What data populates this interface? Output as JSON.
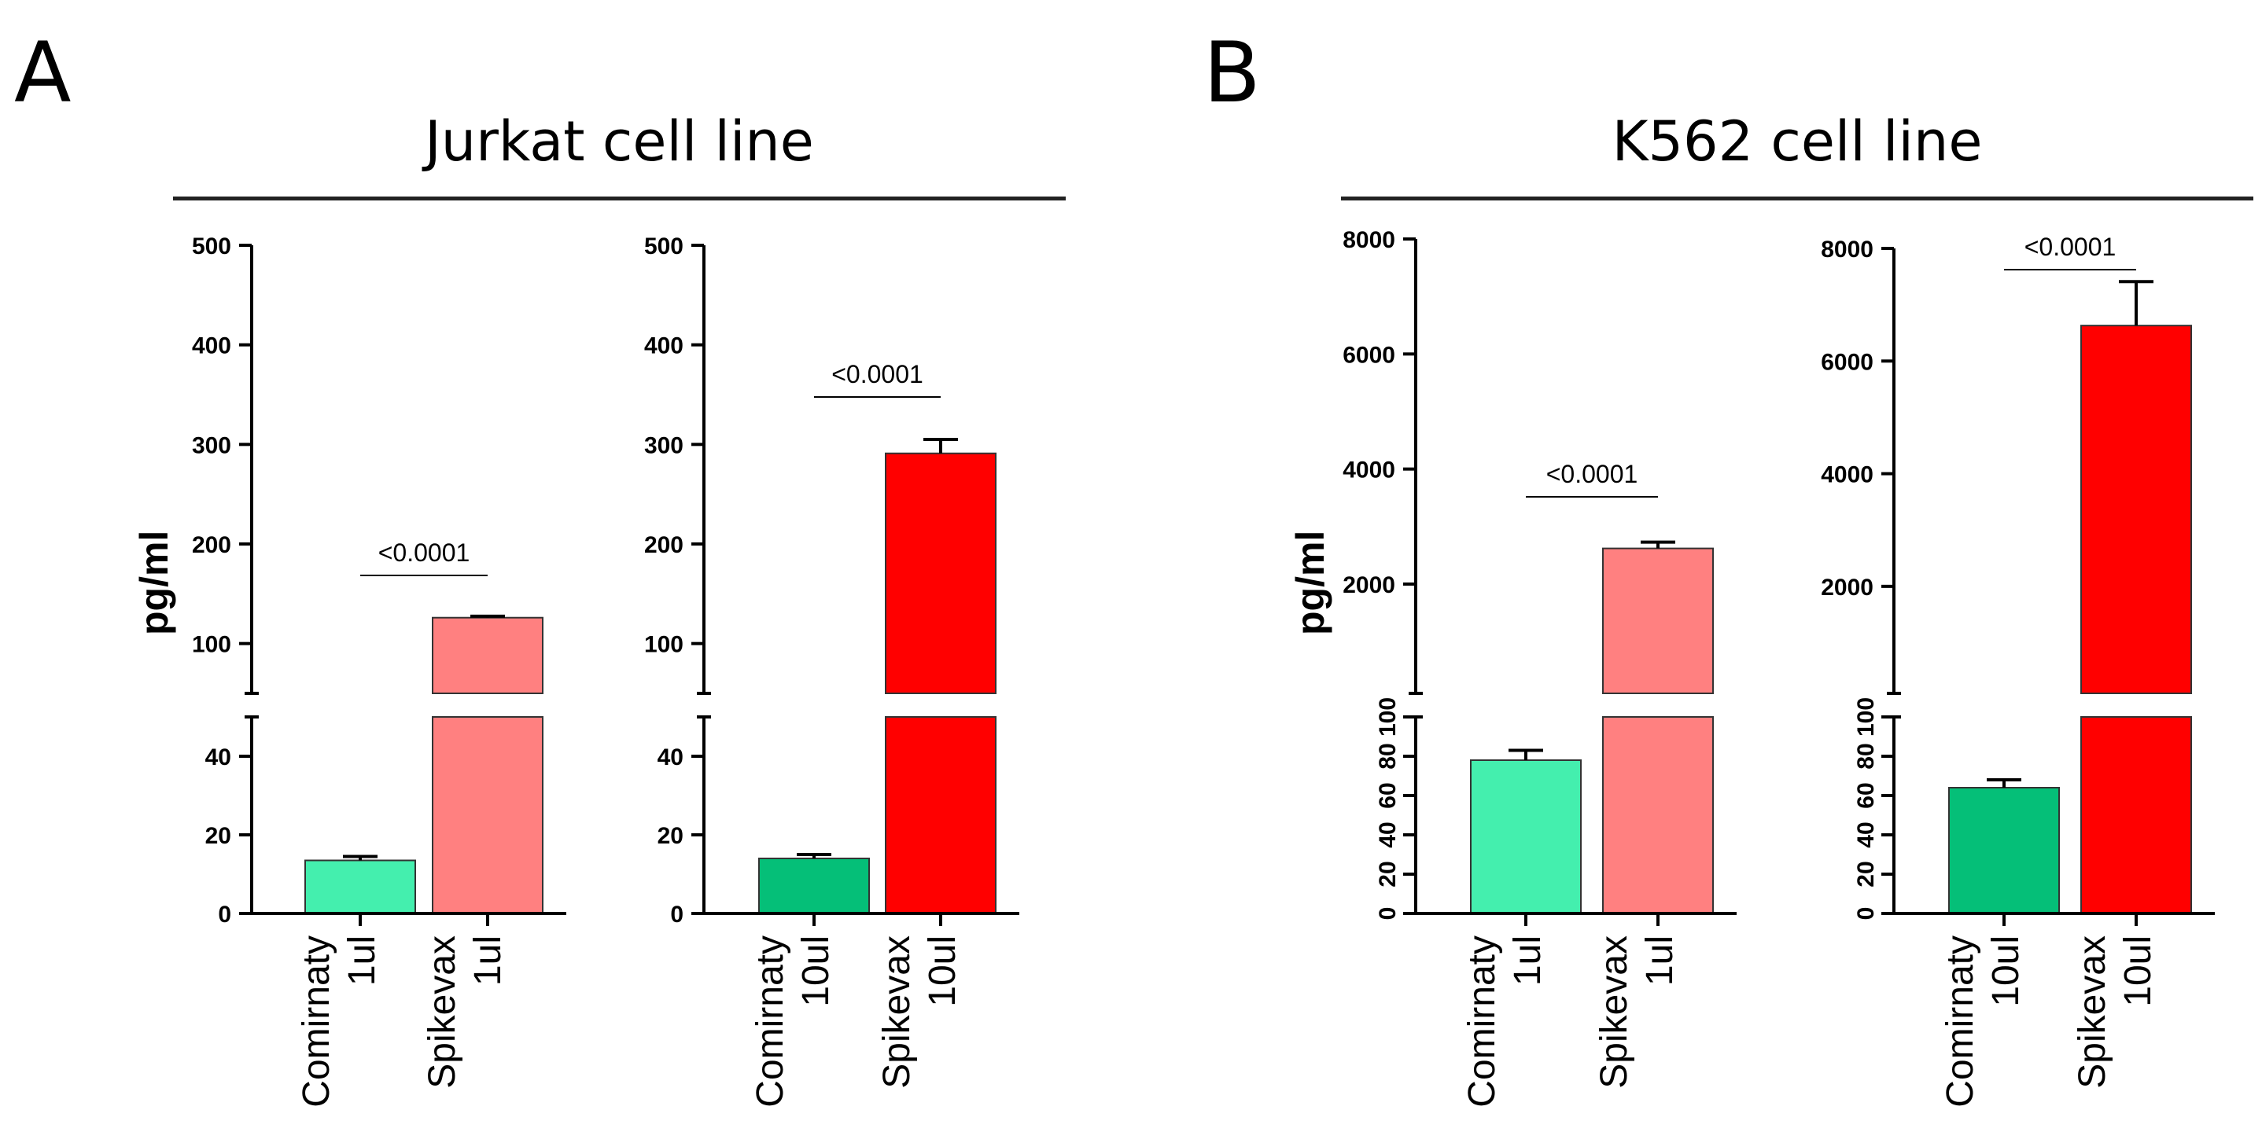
{
  "panels": [
    {
      "letter": "A",
      "title": "Jurkat cell line",
      "ylabel": "pg/ml"
    },
    {
      "letter": "B",
      "title": "K562 cell line",
      "ylabel": "pg/ml"
    }
  ],
  "chart_data": [
    {
      "type": "bar",
      "panel": "A",
      "categories": [
        "Comirnaty\n1ul",
        "Spikevax\n1ul"
      ],
      "values": [
        13.5,
        126
      ],
      "error": [
        1,
        1.5
      ],
      "colors": [
        "#44efae",
        "#ff8080"
      ],
      "ylabel": "pg/ml",
      "broken_axis": {
        "lower": [
          0,
          50
        ],
        "upper": [
          50,
          500
        ]
      },
      "yticks_lower": [
        0,
        20,
        40
      ],
      "yticks_upper": [
        100,
        200,
        300,
        400,
        500
      ],
      "significance": "<0.0001"
    },
    {
      "type": "bar",
      "panel": "A",
      "categories": [
        "Comirnaty\n10ul",
        "Spikevax\n10ul"
      ],
      "values": [
        14,
        291
      ],
      "error": [
        1,
        14
      ],
      "colors": [
        "#05bf78",
        "#ff0000"
      ],
      "broken_axis": {
        "lower": [
          0,
          50
        ],
        "upper": [
          50,
          500
        ]
      },
      "yticks_lower": [
        0,
        20,
        40
      ],
      "yticks_upper": [
        100,
        200,
        300,
        400,
        500
      ],
      "significance": "<0.0001"
    },
    {
      "type": "bar",
      "panel": "B",
      "categories": [
        "Comirnaty\n1ul",
        "Spikevax\n1ul"
      ],
      "values": [
        78,
        2620
      ],
      "error": [
        5,
        110
      ],
      "colors": [
        "#44efae",
        "#ff8080"
      ],
      "ylabel": "pg/ml",
      "broken_axis": {
        "lower": [
          0,
          100
        ],
        "upper": [
          100,
          8000
        ]
      },
      "yticks_lower": [
        0,
        20,
        40,
        60,
        80,
        100
      ],
      "yticks_upper": [
        2000,
        4000,
        6000,
        8000
      ],
      "significance": "<0.0001"
    },
    {
      "type": "bar",
      "panel": "B",
      "categories": [
        "Comirnaty\n10ul",
        "Spikevax\n10ul"
      ],
      "values": [
        64,
        6630
      ],
      "error": [
        4,
        780
      ],
      "colors": [
        "#05bf78",
        "#ff0000"
      ],
      "broken_axis": {
        "lower": [
          0,
          100
        ],
        "upper": [
          100,
          8000
        ]
      },
      "yticks_lower": [
        0,
        20,
        40,
        60,
        80,
        100
      ],
      "yticks_upper": [
        2000,
        4000,
        6000,
        8000
      ],
      "significance": "<0.0001"
    }
  ]
}
